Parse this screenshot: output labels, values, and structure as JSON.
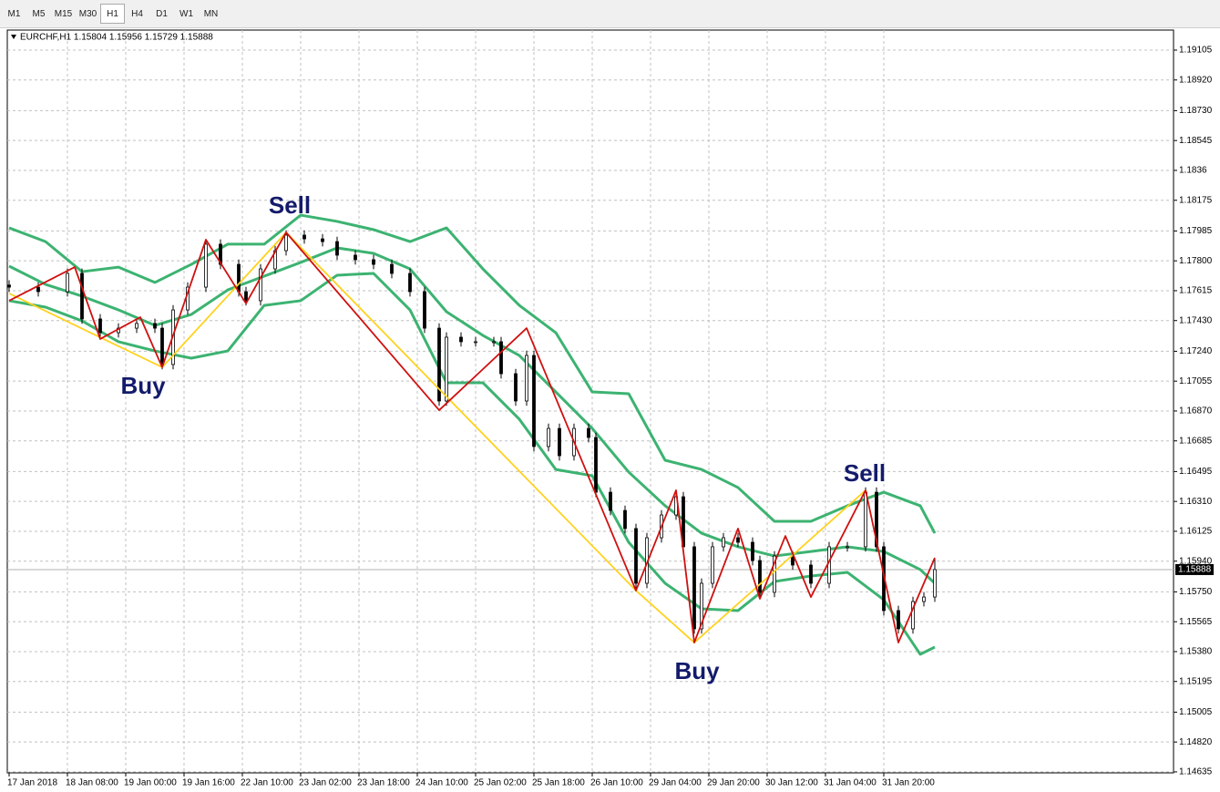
{
  "toolbar": [
    "M1",
    "M5",
    "M15",
    "M30",
    "H1",
    "H4",
    "D1",
    "W1",
    "MN"
  ],
  "active_timeframe": "H1",
  "chart_data": {
    "type": "candlestick",
    "title": "EURCHF,H1  1.15804 1.15956 1.15729 1.15888",
    "up_color": "#ffffff",
    "down_color": "#000000",
    "wick_color": "#000000",
    "grid": true,
    "last_price": 1.15888,
    "xlim": [
      -0.5,
      319.5
    ],
    "ylim": [
      1.14629,
      1.19229
    ],
    "xticks": [
      {
        "value": 0,
        "label": "17 Jan 2018"
      },
      {
        "value": 16,
        "label": "18 Jan 08:00"
      },
      {
        "value": 32,
        "label": "19 Jan 00:00"
      },
      {
        "value": 48,
        "label": "19 Jan 16:00"
      },
      {
        "value": 64,
        "label": "22 Jan 10:00"
      },
      {
        "value": 80,
        "label": "23 Jan 02:00"
      },
      {
        "value": 96,
        "label": "23 Jan 18:00"
      },
      {
        "value": 112,
        "label": "24 Jan 10:00"
      },
      {
        "value": 128,
        "label": "25 Jan 02:00"
      },
      {
        "value": 144,
        "label": "25 Jan 18:00"
      },
      {
        "value": 160,
        "label": "26 Jan 10:00"
      },
      {
        "value": 176,
        "label": "29 Jan 04:00"
      },
      {
        "value": 192,
        "label": "29 Jan 20:00"
      },
      {
        "value": 208,
        "label": "30 Jan 12:00"
      },
      {
        "value": 224,
        "label": "31 Jan 04:00"
      },
      {
        "value": 240,
        "label": "31 Jan 20:00"
      }
    ],
    "yticks": [
      1.19105,
      {
        "value": 1.1892,
        "label": "1.18920"
      },
      {
        "value": 1.1873,
        "label": "1.18730"
      },
      1.18545,
      1.1836,
      1.18175,
      1.17985,
      {
        "value": 1.178,
        "label": "1.17800"
      },
      1.17615,
      {
        "value": 1.1743,
        "label": "1.17430"
      },
      {
        "value": 1.1724,
        "label": "1.17240"
      },
      1.17055,
      {
        "value": 1.1687,
        "label": "1.16870"
      },
      1.16685,
      1.16495,
      {
        "value": 1.1631,
        "label": "1.16310"
      },
      1.16125,
      {
        "value": 1.1594,
        "label": "1.15940"
      },
      {
        "value": 1.1575,
        "label": "1.15750"
      },
      1.15565,
      {
        "value": 1.1538,
        "label": "1.15380"
      },
      1.15195,
      1.15005,
      {
        "value": 1.1482,
        "label": "1.14820"
      },
      1.14635
    ],
    "x": [
      0,
      8,
      16,
      20,
      25,
      30,
      35,
      40,
      42,
      45,
      49,
      54,
      58,
      63,
      65,
      69,
      73,
      76,
      81,
      86,
      90,
      95,
      100,
      105,
      110,
      114,
      118,
      120,
      124,
      128,
      133,
      135,
      139,
      142,
      144,
      148,
      151,
      155,
      159,
      161,
      165,
      169,
      172,
      175,
      179,
      183,
      185,
      188,
      190,
      193,
      196,
      200,
      204,
      206,
      210,
      215,
      220,
      225,
      230,
      235,
      238,
      240,
      244,
      248,
      251,
      254
    ],
    "open": [
      1.1765,
      1.17637,
      1.17609,
      1.17722,
      1.1744,
      1.17355,
      1.17383,
      1.17412,
      1.17383,
      1.17158,
      1.17496,
      1.17637,
      1.17903,
      1.17778,
      1.17609,
      1.17553,
      1.1775,
      1.17863,
      1.17959,
      1.17936,
      1.17919,
      1.17835,
      1.17807,
      1.17778,
      1.17722,
      1.17609,
      1.17383,
      1.16932,
      1.17327,
      1.17299,
      1.17299,
      1.17299,
      1.17101,
      1.16932,
      1.17214,
      1.1665,
      1.16762,
      1.16593,
      1.16762,
      1.16706,
      1.16367,
      1.16254,
      1.16142,
      1.15803,
      1.16085,
      1.16226,
      1.16339,
      1.16029,
      1.15521,
      1.15803,
      1.16029,
      1.16085,
      1.16057,
      1.15944,
      1.15747,
      1.15972,
      1.15916,
      1.15803,
      1.16029,
      1.16029,
      1.16367,
      1.16029,
      1.15634,
      1.15521,
      1.1569,
      1.15718
    ],
    "high": [
      1.1768,
      1.17667,
      1.17752,
      1.17752,
      1.1747,
      1.17413,
      1.17442,
      1.17442,
      1.17413,
      1.17526,
      1.17667,
      1.17933,
      1.17933,
      1.17808,
      1.17639,
      1.1778,
      1.17893,
      1.17989,
      1.17989,
      1.17966,
      1.17949,
      1.17865,
      1.17837,
      1.17808,
      1.17752,
      1.17639,
      1.17413,
      1.17357,
      1.17357,
      1.17329,
      1.17329,
      1.17329,
      1.17131,
      1.17244,
      1.17244,
      1.16792,
      1.16792,
      1.16792,
      1.16792,
      1.16736,
      1.16397,
      1.16284,
      1.16172,
      1.16115,
      1.16256,
      1.16369,
      1.16369,
      1.16059,
      1.15833,
      1.16059,
      1.16115,
      1.16115,
      1.16087,
      1.15974,
      1.16002,
      1.16002,
      1.15946,
      1.16059,
      1.16059,
      1.16397,
      1.16397,
      1.16059,
      1.15664,
      1.1572,
      1.15748,
      1.15956
    ],
    "low": [
      1.17607,
      1.17579,
      1.17579,
      1.1741,
      1.17325,
      1.17325,
      1.17353,
      1.17353,
      1.17128,
      1.17128,
      1.17466,
      1.17607,
      1.17748,
      1.17579,
      1.17523,
      1.17523,
      1.1772,
      1.17833,
      1.17906,
      1.17889,
      1.17805,
      1.17777,
      1.17748,
      1.17692,
      1.17579,
      1.17353,
      1.16902,
      1.16902,
      1.17269,
      1.17269,
      1.17269,
      1.17071,
      1.16902,
      1.16902,
      1.1662,
      1.1662,
      1.16563,
      1.16563,
      1.16676,
      1.16337,
      1.16224,
      1.16112,
      1.15773,
      1.15773,
      1.16055,
      1.16196,
      1.15999,
      1.15491,
      1.15491,
      1.15773,
      1.15999,
      1.16027,
      1.15914,
      1.15717,
      1.15717,
      1.15886,
      1.15773,
      1.15773,
      1.15999,
      1.15999,
      1.15999,
      1.15604,
      1.15491,
      1.15491,
      1.1566,
      1.15688
    ],
    "close": [
      1.17637,
      1.17609,
      1.17722,
      1.1744,
      1.17355,
      1.17383,
      1.17412,
      1.17383,
      1.17158,
      1.17496,
      1.17637,
      1.17903,
      1.17778,
      1.17609,
      1.17553,
      1.1775,
      1.17863,
      1.17959,
      1.17936,
      1.17919,
      1.17835,
      1.17807,
      1.17778,
      1.17722,
      1.17609,
      1.17383,
      1.16932,
      1.17327,
      1.17299,
      1.17299,
      1.17299,
      1.17101,
      1.16932,
      1.17214,
      1.1665,
      1.16762,
      1.16593,
      1.16762,
      1.16706,
      1.16367,
      1.16254,
      1.16142,
      1.15803,
      1.16085,
      1.16226,
      1.16339,
      1.16029,
      1.15521,
      1.15803,
      1.16029,
      1.16085,
      1.16057,
      1.15944,
      1.15747,
      1.15972,
      1.15916,
      1.15803,
      1.16029,
      1.16029,
      1.16367,
      1.16029,
      1.15634,
      1.15521,
      1.1569,
      1.15718,
      1.15888
    ],
    "overlays": [
      {
        "color": "#3cb371",
        "x": [
          0,
          10,
          20,
          30,
          40,
          50,
          60,
          70,
          80,
          90,
          100,
          110,
          120,
          130,
          140,
          150,
          160,
          170,
          180,
          190,
          200,
          210,
          220,
          230,
          240,
          250,
          254
        ],
        "values": [
          1.18004,
          1.17919,
          1.17733,
          1.17761,
          1.17666,
          1.17778,
          1.17903,
          1.17903,
          1.18083,
          1.18044,
          1.17993,
          1.17919,
          1.18004,
          1.1775,
          1.17524,
          1.17355,
          1.16988,
          1.16977,
          1.16565,
          1.16508,
          1.16396,
          1.16187,
          1.16187,
          1.16283,
          1.16367,
          1.16283,
          1.16113
        ]
      },
      {
        "color": "#3cb371",
        "x": [
          0,
          10,
          20,
          30,
          40,
          50,
          60,
          70,
          80,
          90,
          100,
          110,
          120,
          130,
          140,
          150,
          160,
          170,
          180,
          190,
          200,
          210,
          220,
          230,
          240,
          250,
          254
        ],
        "values": [
          1.17767,
          1.17654,
          1.17581,
          1.17496,
          1.174,
          1.17468,
          1.1762,
          1.17705,
          1.1779,
          1.1788,
          1.17846,
          1.1775,
          1.17485,
          1.17338,
          1.17214,
          1.16988,
          1.16762,
          1.16492,
          1.16283,
          1.16113,
          1.16029,
          1.15972,
          1.16,
          1.16029,
          1.16,
          1.15888,
          1.15803
        ]
      },
      {
        "color": "#3cb371",
        "x": [
          0,
          10,
          20,
          30,
          40,
          50,
          60,
          70,
          80,
          90,
          100,
          110,
          120,
          130,
          140,
          150,
          160,
          170,
          180,
          190,
          200,
          210,
          220,
          230,
          240,
          250,
          254
        ],
        "values": [
          1.17553,
          1.17513,
          1.17428,
          1.17299,
          1.17242,
          1.17197,
          1.17242,
          1.17524,
          1.17553,
          1.17711,
          1.17722,
          1.17496,
          1.17045,
          1.17045,
          1.16819,
          1.16508,
          1.16469,
          1.16057,
          1.15803,
          1.15645,
          1.15634,
          1.15814,
          1.15848,
          1.15871,
          1.15701,
          1.15363,
          1.15408
        ]
      },
      {
        "color": "#ffd21f",
        "x": [
          0,
          42,
          76,
          172,
          188,
          235
        ],
        "values": [
          1.17598,
          1.17141,
          1.17976,
          1.15758,
          1.15436,
          1.16379
        ]
      },
      {
        "color": "#d01010",
        "x": [
          0,
          18,
          25,
          36,
          42,
          54,
          65,
          76,
          118,
          142,
          172,
          183,
          188,
          200,
          206,
          213,
          220,
          235,
          244,
          254
        ],
        "values": [
          1.17553,
          1.17761,
          1.17316,
          1.17451,
          1.17141,
          1.17931,
          1.17536,
          1.17976,
          1.16875,
          1.17383,
          1.15758,
          1.16379,
          1.15436,
          1.16142,
          1.15707,
          1.16096,
          1.15718,
          1.16379,
          1.15436,
          1.15961
        ]
      }
    ],
    "annotations": [
      "Sell",
      "Buy",
      "Buy",
      "Sell"
    ]
  }
}
